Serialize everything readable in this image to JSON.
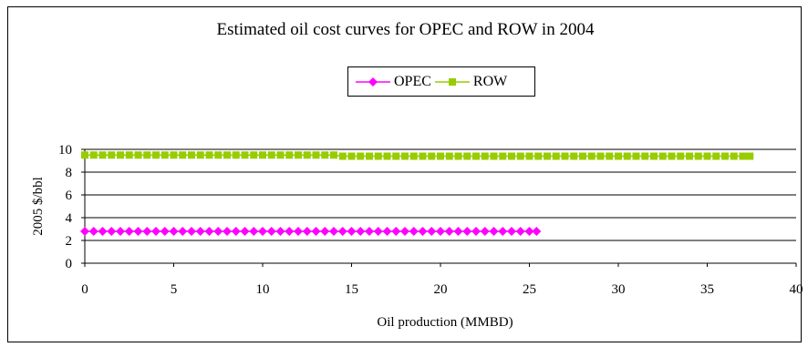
{
  "chart_data": {
    "type": "line",
    "title": "Estimated oil cost curves for OPEC and ROW in 2004",
    "xlabel": "Oil production (MMBD)",
    "ylabel": "2005 $/bbl",
    "xlim": [
      0,
      40
    ],
    "ylim": [
      0,
      10
    ],
    "xticks": [
      "0",
      "5",
      "10",
      "15",
      "20",
      "25",
      "30",
      "35",
      "40"
    ],
    "yticks": [
      "0",
      "2",
      "4",
      "6",
      "8",
      "10"
    ],
    "grid": "horizontal",
    "legend_position": "top-center",
    "series": [
      {
        "name": "OPEC",
        "color": "#ff00ff",
        "marker": "diamond",
        "x": [
          0,
          0.5,
          1,
          1.5,
          2,
          2.5,
          3,
          3.5,
          4,
          4.5,
          5,
          5.5,
          6,
          6.5,
          7,
          7.5,
          8,
          8.5,
          9,
          9.5,
          10,
          10.5,
          11,
          11.5,
          12,
          12.5,
          13,
          13.5,
          14,
          14.5,
          15,
          15.5,
          16,
          16.5,
          17,
          17.5,
          18,
          18.5,
          19,
          19.5,
          20,
          20.5,
          21,
          21.5,
          22,
          22.5,
          23,
          23.5,
          24,
          24.5,
          25,
          25.4
        ],
        "y": [
          2.8,
          2.8,
          2.8,
          2.8,
          2.8,
          2.8,
          2.8,
          2.8,
          2.8,
          2.8,
          2.8,
          2.8,
          2.8,
          2.8,
          2.8,
          2.8,
          2.8,
          2.8,
          2.8,
          2.8,
          2.8,
          2.8,
          2.8,
          2.8,
          2.8,
          2.8,
          2.8,
          2.8,
          2.8,
          2.8,
          2.8,
          2.8,
          2.8,
          2.8,
          2.8,
          2.8,
          2.8,
          2.8,
          2.8,
          2.8,
          2.8,
          2.8,
          2.8,
          2.8,
          2.8,
          2.8,
          2.8,
          2.8,
          2.8,
          2.8,
          2.8,
          2.8
        ]
      },
      {
        "name": "ROW",
        "color": "#99cc00",
        "marker": "square",
        "x": [
          0,
          0.5,
          1,
          1.5,
          2,
          2.5,
          3,
          3.5,
          4,
          4.5,
          5,
          5.5,
          6,
          6.5,
          7,
          7.5,
          8,
          8.5,
          9,
          9.5,
          10,
          10.5,
          11,
          11.5,
          12,
          12.5,
          13,
          13.5,
          14,
          14.5,
          15,
          15.5,
          16,
          16.5,
          17,
          17.5,
          18,
          18.5,
          19,
          19.5,
          20,
          20.5,
          21,
          21.5,
          22,
          22.5,
          23,
          23.5,
          24,
          24.5,
          25,
          25.5,
          26,
          26.5,
          27,
          27.5,
          28,
          28.5,
          29,
          29.5,
          30,
          30.5,
          31,
          31.5,
          32,
          32.5,
          33,
          33.5,
          34,
          34.5,
          35,
          35.5,
          36,
          36.5,
          37,
          37.4
        ],
        "y": [
          9.5,
          9.5,
          9.5,
          9.5,
          9.5,
          9.5,
          9.5,
          9.5,
          9.5,
          9.5,
          9.5,
          9.5,
          9.5,
          9.5,
          9.5,
          9.5,
          9.5,
          9.5,
          9.5,
          9.5,
          9.5,
          9.5,
          9.5,
          9.5,
          9.5,
          9.5,
          9.5,
          9.5,
          9.5,
          9.4,
          9.4,
          9.4,
          9.4,
          9.4,
          9.4,
          9.4,
          9.4,
          9.4,
          9.4,
          9.4,
          9.4,
          9.4,
          9.4,
          9.4,
          9.4,
          9.4,
          9.4,
          9.4,
          9.4,
          9.4,
          9.4,
          9.4,
          9.4,
          9.4,
          9.4,
          9.4,
          9.4,
          9.4,
          9.4,
          9.4,
          9.4,
          9.4,
          9.4,
          9.4,
          9.4,
          9.4,
          9.4,
          9.4,
          9.4,
          9.4,
          9.4,
          9.4,
          9.4,
          9.4,
          9.4,
          9.4
        ]
      }
    ]
  }
}
